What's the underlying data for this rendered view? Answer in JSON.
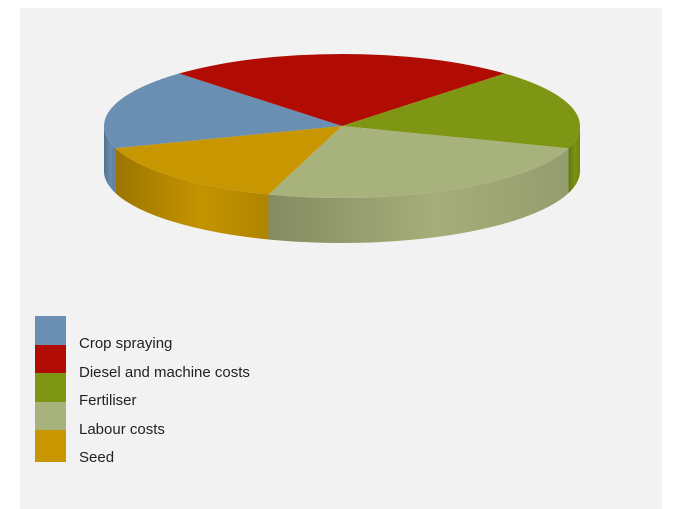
{
  "chart_data": {
    "type": "pie",
    "title": "",
    "legend_position": "bottom-left",
    "slices": [
      {
        "label": "Crop spraying",
        "value": 18,
        "color": "#6a8fb2"
      },
      {
        "label": "Diesel and machine costs",
        "value": 24,
        "color": "#b00c03"
      },
      {
        "label": "Fertiliser",
        "value": 18,
        "color": "#7e9614"
      },
      {
        "label": "Labour costs",
        "value": 25,
        "color": "#a8b27c"
      },
      {
        "label": "Seed",
        "value": 15,
        "color": "#c89600"
      }
    ]
  }
}
